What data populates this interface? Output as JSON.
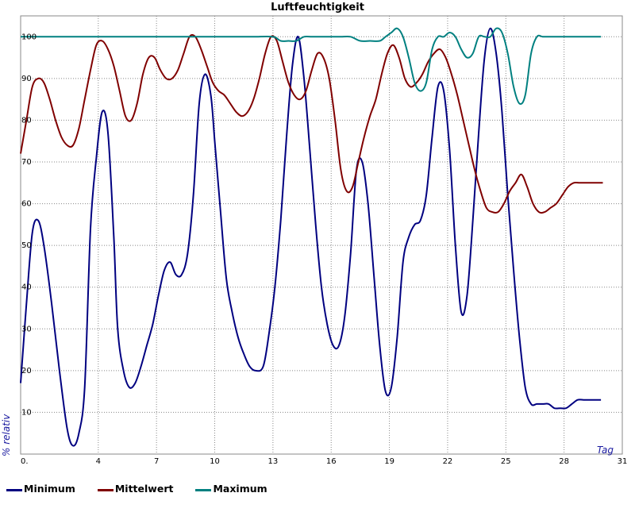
{
  "chart_data": {
    "type": "line",
    "title": "Luftfeuchtigkeit",
    "xlabel": "Tag",
    "ylabel": "% relativ",
    "xlim": [
      0,
      31
    ],
    "ylim": [
      0,
      105
    ],
    "x_ticks": [
      0,
      4,
      7,
      10,
      13,
      16,
      19,
      22,
      25,
      28,
      31
    ],
    "x_tick_labels": [
      "0.",
      "4",
      "7",
      "10",
      "13",
      "16",
      "19",
      "22",
      "25",
      "28",
      "31"
    ],
    "y_ticks": [
      10,
      20,
      30,
      40,
      50,
      60,
      70,
      80,
      90,
      100
    ],
    "grid": true,
    "legend_position": "bottom-left",
    "series": [
      {
        "name": "Minimum",
        "color": "#000080",
        "x": [
          0,
          0.3,
          0.6,
          0.9,
          1.2,
          1.6,
          2.0,
          2.4,
          2.7,
          3.0,
          3.3,
          3.6,
          3.9,
          4.2,
          4.5,
          4.8,
          5.0,
          5.3,
          5.6,
          5.9,
          6.2,
          6.5,
          6.8,
          7.1,
          7.4,
          7.7,
          8.0,
          8.3,
          8.6,
          8.9,
          9.2,
          9.5,
          9.8,
          10.0,
          10.3,
          10.6,
          10.9,
          11.2,
          11.5,
          11.8,
          12.1,
          12.5,
          12.8,
          13.1,
          13.4,
          13.7,
          14.0,
          14.3,
          14.6,
          14.9,
          15.2,
          15.5,
          15.8,
          16.1,
          16.4,
          16.7,
          17.0,
          17.3,
          17.6,
          17.9,
          18.2,
          18.5,
          18.8,
          19.1,
          19.4,
          19.7,
          20.0,
          20.3,
          20.6,
          20.9,
          21.2,
          21.5,
          21.8,
          22.1,
          22.4,
          22.7,
          23.0,
          23.3,
          23.6,
          23.9,
          24.2,
          24.5,
          24.8,
          25.1,
          25.4,
          25.7,
          26.0,
          26.3,
          26.6,
          26.9,
          27.2,
          27.5,
          27.8,
          28.1,
          28.4,
          28.7,
          29.0,
          29.3,
          29.6,
          29.9
        ],
        "values": [
          17,
          36,
          53,
          56,
          50,
          36,
          20,
          6,
          2,
          5,
          16,
          54,
          71,
          82,
          77,
          52,
          30,
          20,
          16,
          17,
          21,
          26,
          31,
          38,
          44,
          46,
          43,
          43,
          48,
          62,
          84,
          91,
          86,
          75,
          58,
          42,
          34,
          28,
          24,
          21,
          20,
          21,
          29,
          40,
          56,
          76,
          93,
          100,
          90,
          73,
          55,
          40,
          31,
          26,
          26,
          33,
          48,
          68,
          70,
          60,
          43,
          26,
          15,
          16,
          28,
          46,
          52,
          55,
          56,
          62,
          76,
          88,
          87,
          73,
          50,
          34,
          38,
          56,
          77,
          95,
          102,
          96,
          82,
          62,
          44,
          28,
          16,
          12,
          12,
          12,
          12,
          11,
          11,
          11,
          12,
          13,
          13,
          13,
          13,
          13
        ]
      },
      {
        "name": "Mittelwert",
        "color": "#800000",
        "x": [
          0,
          0.3,
          0.6,
          0.9,
          1.2,
          1.5,
          1.8,
          2.1,
          2.4,
          2.7,
          3.0,
          3.3,
          3.6,
          3.9,
          4.2,
          4.5,
          4.8,
          5.1,
          5.4,
          5.7,
          6.0,
          6.3,
          6.6,
          6.9,
          7.2,
          7.5,
          7.8,
          8.1,
          8.4,
          8.7,
          9.0,
          9.3,
          9.6,
          9.9,
          10.2,
          10.5,
          10.8,
          11.1,
          11.4,
          11.7,
          12.0,
          12.3,
          12.6,
          12.9,
          13.2,
          13.5,
          13.8,
          14.1,
          14.4,
          14.7,
          15.0,
          15.3,
          15.6,
          15.9,
          16.2,
          16.5,
          16.8,
          17.1,
          17.4,
          17.7,
          18.0,
          18.3,
          18.6,
          18.9,
          19.2,
          19.5,
          19.8,
          20.1,
          20.4,
          20.7,
          21.0,
          21.3,
          21.6,
          21.9,
          22.2,
          22.5,
          22.8,
          23.1,
          23.4,
          23.7,
          24.0,
          24.3,
          24.6,
          24.9,
          25.2,
          25.5,
          25.8,
          26.1,
          26.4,
          26.7,
          27.0,
          27.3,
          27.6,
          27.9,
          28.2,
          28.5,
          28.8,
          29.1,
          29.4,
          29.7,
          30.0
        ],
        "values": [
          72,
          80,
          88,
          90,
          89,
          85,
          80,
          76,
          74,
          74,
          78,
          85,
          92,
          98,
          99,
          97,
          93,
          87,
          81,
          80,
          84,
          91,
          95,
          95,
          92,
          90,
          90,
          92,
          96,
          100,
          100,
          97,
          93,
          89,
          87,
          86,
          84,
          82,
          81,
          82,
          85,
          90,
          96,
          100,
          99,
          94,
          89,
          86,
          85,
          87,
          92,
          96,
          95,
          90,
          80,
          68,
          63,
          64,
          70,
          76,
          81,
          85,
          91,
          96,
          98,
          95,
          90,
          88,
          89,
          91,
          94,
          96,
          97,
          95,
          91,
          86,
          80,
          74,
          68,
          63,
          59,
          58,
          58,
          60,
          63,
          65,
          67,
          64,
          60,
          58,
          58,
          59,
          60,
          62,
          64,
          65,
          65,
          65,
          65,
          65,
          65
        ]
      },
      {
        "name": "Maximum",
        "color": "#008080",
        "x": [
          0,
          0.5,
          1.0,
          1.5,
          2.0,
          3.0,
          4.0,
          5.0,
          6.0,
          7.0,
          8.0,
          9.0,
          10.0,
          11.0,
          12.0,
          13.0,
          13.4,
          13.8,
          14.2,
          14.6,
          15.0,
          15.5,
          16.0,
          16.5,
          17.0,
          17.5,
          18.0,
          18.5,
          18.8,
          19.1,
          19.4,
          19.7,
          20.0,
          20.3,
          20.6,
          20.9,
          21.2,
          21.5,
          21.8,
          22.1,
          22.4,
          22.7,
          23.0,
          23.3,
          23.6,
          23.9,
          24.2,
          24.5,
          24.8,
          25.1,
          25.4,
          25.7,
          26.0,
          26.3,
          26.6,
          26.9,
          27.2,
          27.5,
          27.8,
          28.1,
          28.4,
          28.7,
          29.0,
          29.3,
          29.6,
          29.9
        ],
        "values": [
          100,
          100,
          100,
          100,
          100,
          100,
          100,
          100,
          100,
          100,
          100,
          100,
          100,
          100,
          100,
          100,
          99,
          99,
          99,
          100,
          100,
          100,
          100,
          100,
          100,
          99,
          99,
          99,
          100,
          101,
          102,
          100,
          95,
          89,
          87,
          89,
          97,
          100,
          100,
          101,
          100,
          97,
          95,
          96,
          100,
          100,
          100,
          102,
          101,
          96,
          88,
          84,
          86,
          96,
          100,
          100,
          100,
          100,
          100,
          100,
          100,
          100,
          100,
          100,
          100,
          100
        ]
      }
    ]
  }
}
